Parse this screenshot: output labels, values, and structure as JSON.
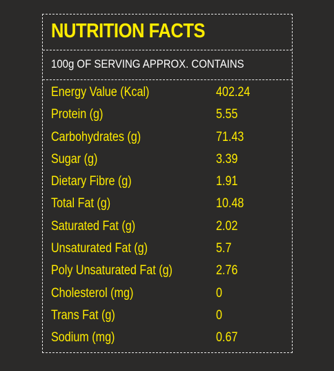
{
  "title": "NUTRITION FACTS",
  "subtitle": "100g OF SERVING APPROX. CONTAINS",
  "colors": {
    "background": "#2b2a29",
    "accent": "#ffec00",
    "text": "#ffffff",
    "border": "#e9e9e9"
  },
  "rows": [
    {
      "label": "Energy Value (Kcal)",
      "value": "402.24"
    },
    {
      "label": "Protein (g)",
      "value": "5.55"
    },
    {
      "label": "Carbohydrates (g)",
      "value": "71.43"
    },
    {
      "label": "Sugar (g)",
      "value": "3.39"
    },
    {
      "label": "Dietary Fibre (g)",
      "value": "1.91"
    },
    {
      "label": "Total Fat (g)",
      "value": "10.48"
    },
    {
      "label": "Saturated Fat (g)",
      "value": "2.02"
    },
    {
      "label": "Unsaturated Fat (g)",
      "value": "5.7"
    },
    {
      "label": "Poly Unsaturated Fat (g)",
      "value": "2.76"
    },
    {
      "label": "Cholesterol (mg)",
      "value": "0"
    },
    {
      "label": "Trans Fat (g)",
      "value": "0"
    },
    {
      "label": "Sodium (mg)",
      "value": "0.67"
    }
  ]
}
